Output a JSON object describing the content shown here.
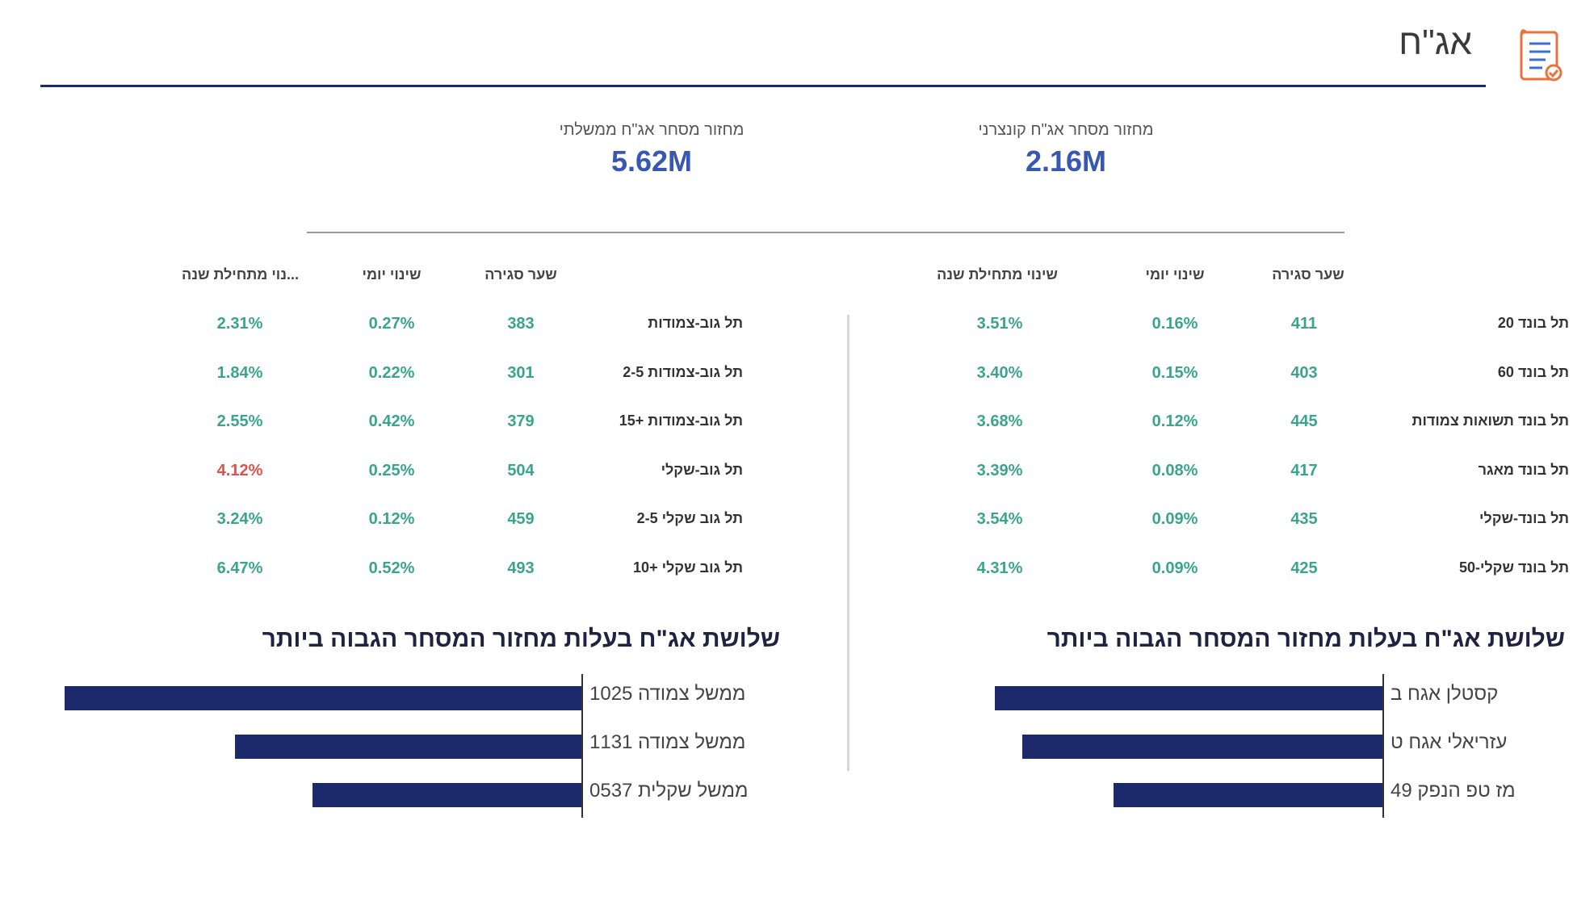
{
  "header": {
    "title": "אג\"ח",
    "icon": "document-checklist-icon"
  },
  "kpis": {
    "corporate": {
      "label": "מחזור מסחר אג\"ח קונצרני",
      "value": "2.16M"
    },
    "government": {
      "label": "מחזור מסחר אג\"ח ממשלתי",
      "value": "5.62M"
    }
  },
  "colors": {
    "accent": "#3857b3",
    "navy": "#1c2a6b",
    "positive": "#3aa48c",
    "negative": "#d9534f"
  },
  "corporate_table": {
    "headers": {
      "close": "שער סגירה",
      "daily": "שינוי יומי",
      "ytd": "שינוי מתחילת שנה"
    },
    "rows": [
      {
        "name": "תל בונד 20",
        "close": "411",
        "daily": "0.16%",
        "ytd": "3.51%"
      },
      {
        "name": "תל בונד 60",
        "close": "403",
        "daily": "0.15%",
        "ytd": "3.40%"
      },
      {
        "name": "תל בונד תשואות צמודות",
        "close": "445",
        "daily": "0.12%",
        "ytd": "3.68%"
      },
      {
        "name": "תל בונד מאגר",
        "close": "417",
        "daily": "0.08%",
        "ytd": "3.39%"
      },
      {
        "name": "תל בונד-שקלי",
        "close": "435",
        "daily": "0.09%",
        "ytd": "3.54%"
      },
      {
        "name": "תל בונד שקלי-50",
        "close": "425",
        "daily": "0.09%",
        "ytd": "4.31%"
      }
    ]
  },
  "government_table": {
    "headers": {
      "close": "שער סגירה",
      "daily": "שינוי יומי",
      "ytd": "...נוי מתחילת שנה"
    },
    "rows": [
      {
        "name": "תל גוב-צמודות",
        "close": "383",
        "daily": "0.27%",
        "ytd": "2.31%",
        "ytd_status": "positive"
      },
      {
        "name": "תל גוב-צמודות 2-5",
        "close": "301",
        "daily": "0.22%",
        "ytd": "1.84%",
        "ytd_status": "positive"
      },
      {
        "name": "תל גוב-צמודות +15",
        "close": "379",
        "daily": "0.42%",
        "ytd": "2.55%",
        "ytd_status": "positive"
      },
      {
        "name": "תל גוב-שקלי",
        "close": "504",
        "daily": "0.25%",
        "ytd": "4.12%",
        "ytd_status": "negative"
      },
      {
        "name": "תל גוב שקלי 2-5",
        "close": "459",
        "daily": "0.12%",
        "ytd": "3.24%",
        "ytd_status": "positive"
      },
      {
        "name": "תל גוב שקלי +10",
        "close": "493",
        "daily": "0.52%",
        "ytd": "6.47%",
        "ytd_status": "positive"
      }
    ]
  },
  "top3_corporate": {
    "title": "שלושת אג\"ח בעלות מחזור המסחר הגבוה ביותר",
    "items": [
      {
        "label": "קסטלן   אגח ב",
        "value": 0.98
      },
      {
        "label": "עזריאלי   אגח ט",
        "value": 0.91
      },
      {
        "label": "מז טפ הנפק   49",
        "value": 0.68
      }
    ]
  },
  "top3_government": {
    "title": "שלושת אג\"ח בעלות מחזור המסחר הגבוה ביותר",
    "items": [
      {
        "label": "ממשל צמודה 1025",
        "value": 1.0
      },
      {
        "label": "ממשל צמודה 1131",
        "value": 0.67
      },
      {
        "label": "ממשל שקלית 0537",
        "value": 0.52
      }
    ]
  }
}
